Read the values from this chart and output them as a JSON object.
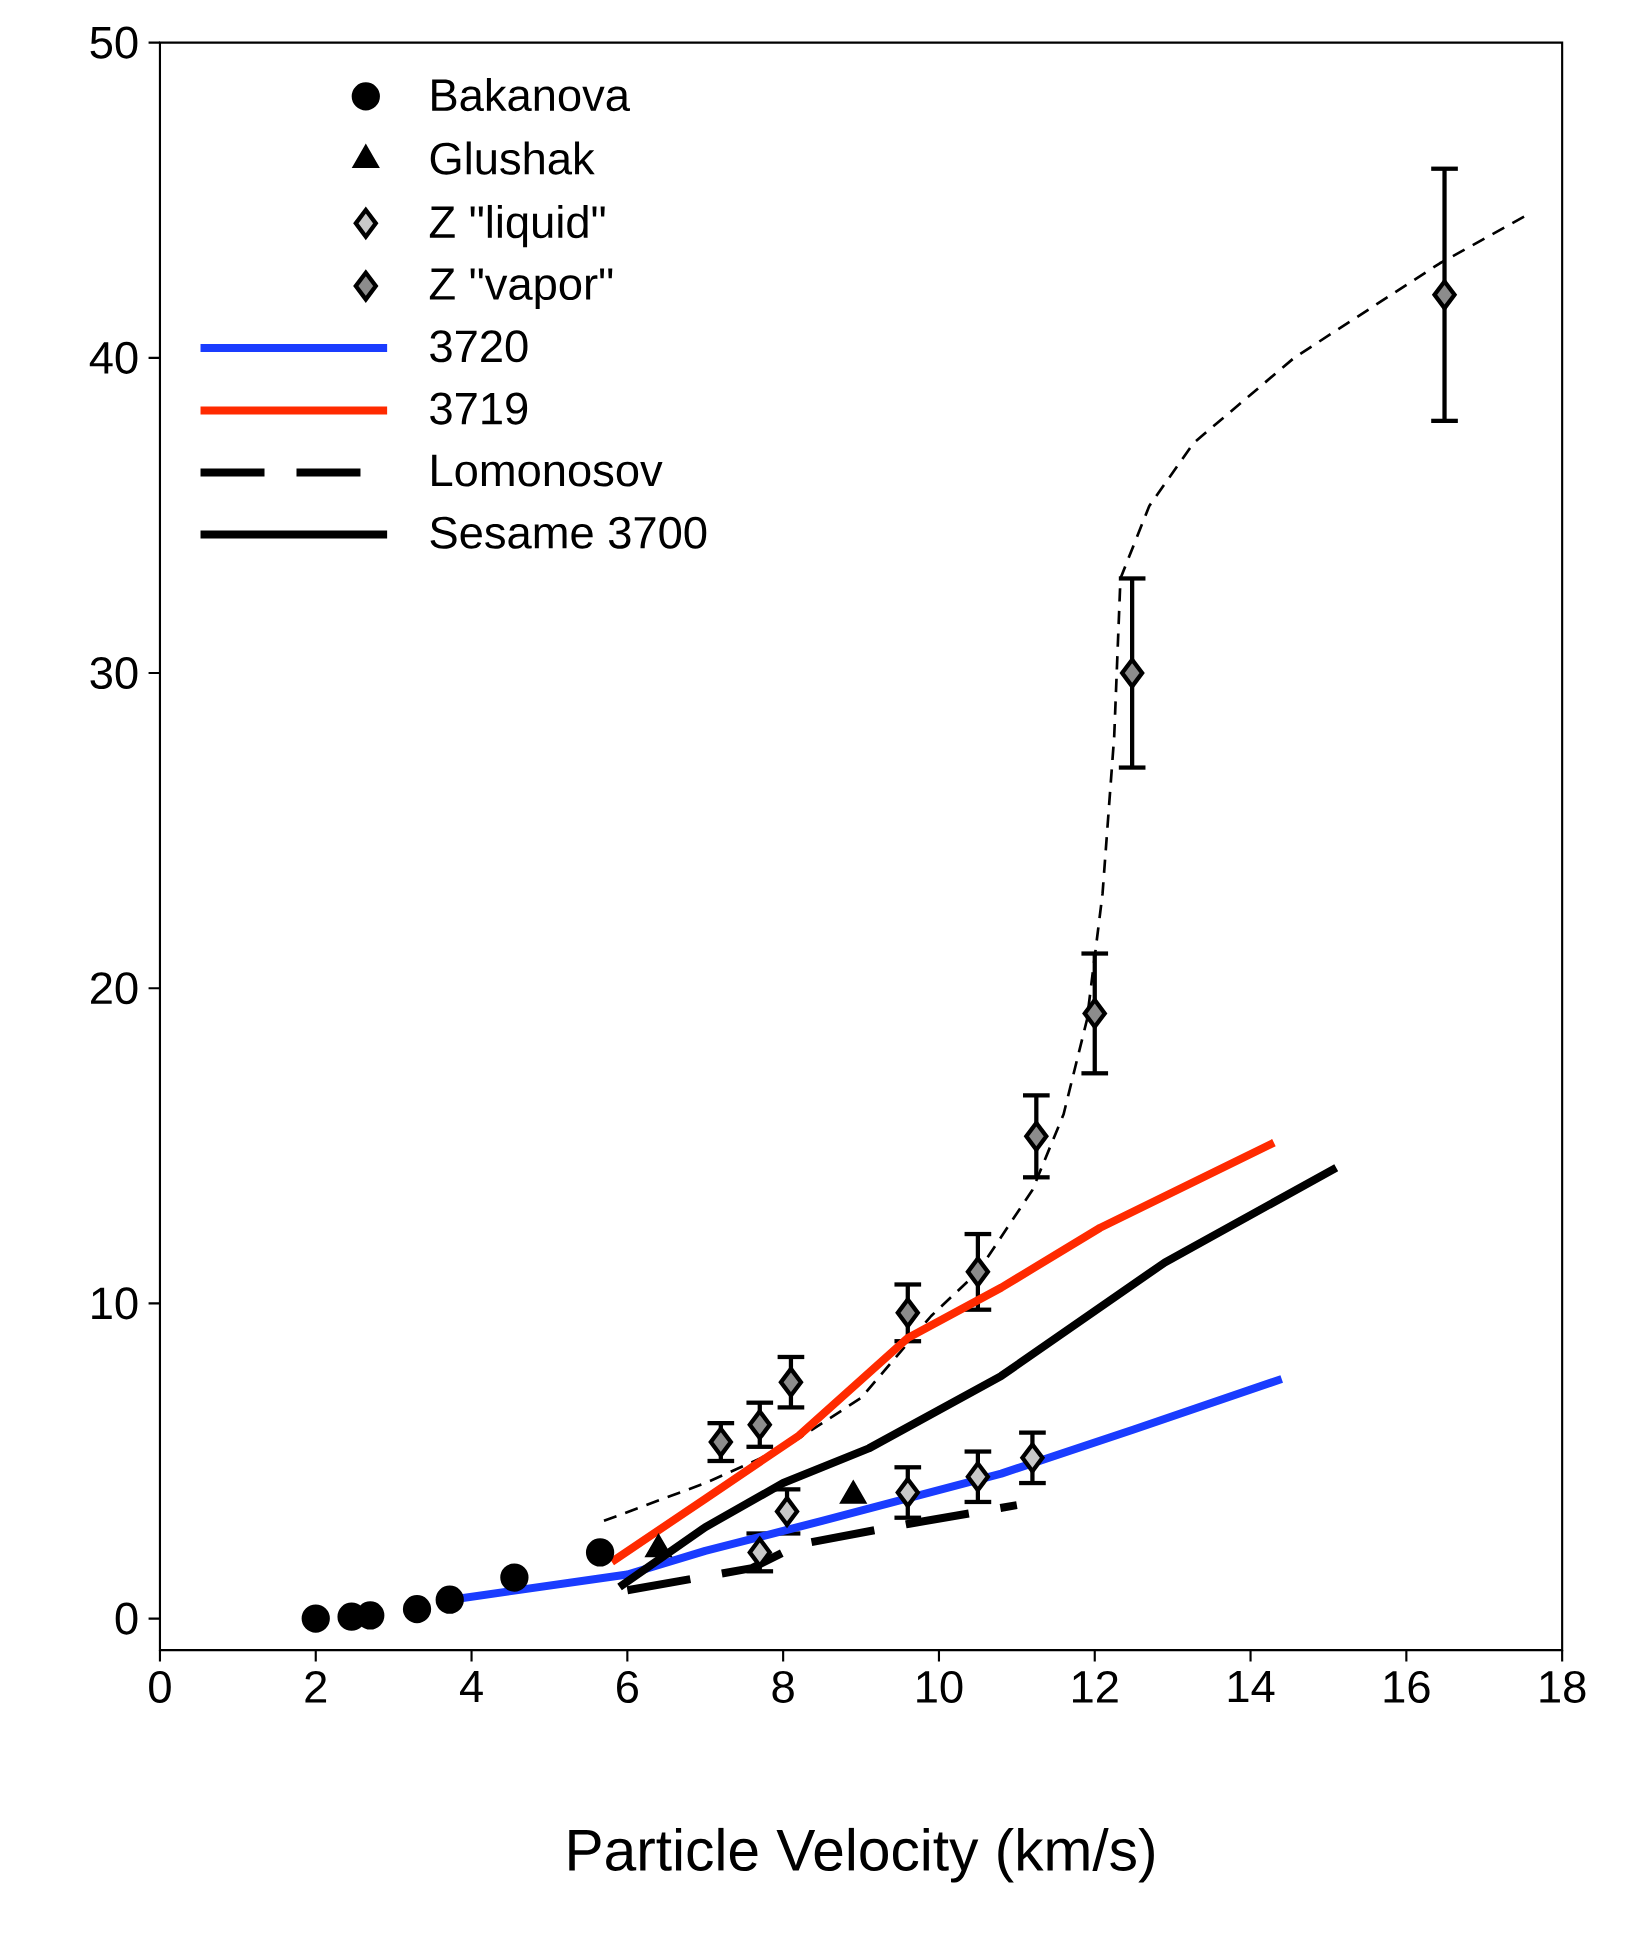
{
  "chart_data": {
    "type": "scatter",
    "xlabel": "Particle Velocity (km/s)",
    "xlim": [
      0,
      18
    ],
    "ylim": [
      -1,
      50
    ],
    "xticks": [
      0,
      2,
      4,
      6,
      8,
      10,
      12,
      14,
      16,
      18
    ],
    "yticks": [
      0,
      10,
      20,
      30,
      40,
      50
    ],
    "legend": "top left",
    "grid": false,
    "series": [
      {
        "type": "line",
        "color": "#000000",
        "marker": "none",
        "line_style": "dashed",
        "x": [
          5.7,
          7.0,
          8.0,
          9.0,
          9.9,
          10.5,
          11.2,
          11.6,
          11.9,
          12.1,
          12.25,
          12.33,
          12.7,
          13.27,
          14.56,
          16.43,
          17.6
        ],
        "values": [
          3.1,
          4.3,
          5.4,
          7.0,
          9.6,
          11.0,
          13.6,
          16.0,
          19.0,
          23.0,
          28.0,
          33.0,
          35.3,
          37.3,
          40.0,
          43.0,
          44.6
        ]
      },
      {
        "name": "Bakanova",
        "color": "#000000",
        "marker": "circle",
        "x": [
          2.0,
          2.46,
          2.7,
          3.3,
          3.72,
          4.55,
          5.65
        ],
        "values": [
          0.0,
          0.06,
          0.1,
          0.3,
          0.6,
          1.3,
          2.1
        ]
      },
      {
        "name": "Glushak",
        "color": "#000000",
        "marker": "triangle",
        "x": [
          6.4,
          8.9
        ],
        "values": [
          2.2,
          3.9
        ]
      },
      {
        "name": "Z \"liquid\"",
        "color": "#c8c8c8",
        "marker": "diamond",
        "x": [
          7.7,
          8.05,
          9.6,
          10.5,
          11.2
        ],
        "values": [
          2.1,
          3.4,
          4.0,
          4.5,
          5.1
        ],
        "errors": [
          0.6,
          0.7,
          0.8,
          0.8,
          0.8
        ]
      },
      {
        "name": "Z \"vapor\"",
        "color": "#8c8c8c",
        "marker": "diamond",
        "x": [
          7.2,
          7.7,
          8.1,
          9.6,
          10.5,
          11.25,
          12.0,
          12.48,
          16.49
        ],
        "values": [
          5.6,
          6.15,
          7.5,
          9.7,
          11.0,
          15.3,
          19.2,
          30.0,
          42.0
        ],
        "errors": [
          0.6,
          0.7,
          0.8,
          0.9,
          1.2,
          1.3,
          1.9,
          3.0,
          4.0
        ]
      },
      {
        "name": "3720",
        "type": "line",
        "color": "#1a3cff",
        "marker": "none",
        "line_style": "solid",
        "x": [
          3.6,
          6.0,
          7.0,
          8.5,
          10.8,
          12.5,
          14.4
        ],
        "values": [
          0.55,
          1.4,
          2.15,
          3.1,
          4.6,
          6.0,
          7.6
        ]
      },
      {
        "name": "3719",
        "type": "line",
        "color": "#ff2a00",
        "marker": "none",
        "line_style": "solid",
        "x": [
          5.8,
          7.0,
          8.2,
          9.6,
          10.8,
          12.07,
          14.3
        ],
        "values": [
          1.8,
          3.8,
          5.8,
          8.9,
          10.5,
          12.4,
          15.1
        ]
      },
      {
        "name": "Lomonosov",
        "type": "line",
        "color": "#000000",
        "marker": "none",
        "line_style": "dashed",
        "x": [
          6.0,
          7.6,
          8.2,
          9.6,
          11.0
        ],
        "values": [
          0.9,
          1.6,
          2.35,
          3.0,
          3.6
        ]
      },
      {
        "name": "Sesame 3700",
        "type": "line",
        "color": "#000000",
        "marker": "none",
        "line_style": "solid",
        "x": [
          5.9,
          7.0,
          8.0,
          9.1,
          10.8,
          12.9,
          15.1
        ],
        "values": [
          1.0,
          2.9,
          4.3,
          5.4,
          7.7,
          11.3,
          14.3
        ]
      }
    ]
  }
}
